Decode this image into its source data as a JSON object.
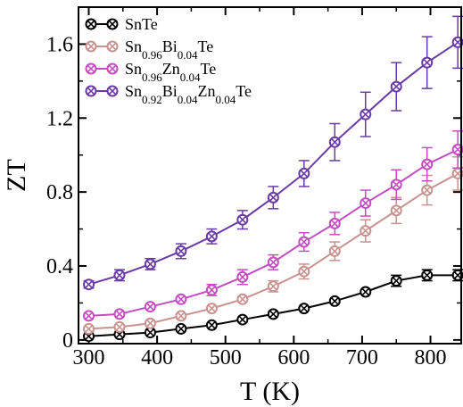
{
  "chart_data": {
    "type": "line",
    "xlabel": "T (K)",
    "ylabel": "ZT",
    "xlim": [
      285,
      845
    ],
    "ylim": [
      -0.02,
      1.8
    ],
    "x_ticks": [
      300,
      400,
      500,
      600,
      700,
      800
    ],
    "y_ticks": [
      0,
      0.4,
      0.8,
      1.2,
      1.6
    ],
    "x_tick_labels": [
      "300",
      "400",
      "500",
      "600",
      "700",
      "800"
    ],
    "y_tick_labels": [
      "0",
      "0.4",
      "0.8",
      "1.2",
      "1.6"
    ],
    "legend_position": "top-left",
    "marker": "circle-x",
    "x": [
      300,
      345,
      390,
      435,
      480,
      525,
      570,
      615,
      660,
      705,
      750,
      795,
      840
    ],
    "series": [
      {
        "name": "SnTe",
        "label_parts": [
          [
            "Sn",
            ""
          ],
          [
            "Te",
            ""
          ]
        ],
        "color": "#000000",
        "values": [
          0.02,
          0.03,
          0.04,
          0.06,
          0.08,
          0.11,
          0.14,
          0.17,
          0.21,
          0.26,
          0.32,
          0.35,
          0.35
        ],
        "errors": [
          0.0,
          0.0,
          0.0,
          0.0,
          0.0,
          0.0,
          0.0,
          0.0,
          0.0,
          0.0,
          0.03,
          0.03,
          0.03
        ]
      },
      {
        "name": "Sn0.96Bi0.04Te",
        "label_parts": [
          [
            "Sn",
            "0.96"
          ],
          [
            "Bi",
            "0.04"
          ],
          [
            "Te",
            ""
          ]
        ],
        "color": "#c8938f",
        "values": [
          0.06,
          0.07,
          0.09,
          0.13,
          0.17,
          0.22,
          0.29,
          0.37,
          0.48,
          0.59,
          0.7,
          0.81,
          0.9
        ],
        "errors": [
          0.0,
          0.0,
          0.0,
          0.0,
          0.0,
          0.0,
          0.03,
          0.04,
          0.05,
          0.06,
          0.07,
          0.08,
          0.09
        ]
      },
      {
        "name": "Sn0.96Zn0.04Te",
        "label_parts": [
          [
            "Sn",
            "0.96"
          ],
          [
            "Zn",
            "0.04"
          ],
          [
            "Te",
            ""
          ]
        ],
        "color": "#c54cc1",
        "values": [
          0.13,
          0.14,
          0.18,
          0.22,
          0.27,
          0.34,
          0.42,
          0.53,
          0.63,
          0.74,
          0.84,
          0.95,
          1.03
        ],
        "errors": [
          0.0,
          0.0,
          0.0,
          0.0,
          0.03,
          0.04,
          0.04,
          0.05,
          0.06,
          0.07,
          0.08,
          0.09,
          0.1
        ]
      },
      {
        "name": "Sn0.92Bi0.04Zn0.04Te",
        "label_parts": [
          [
            "Sn",
            "0.92"
          ],
          [
            "Bi",
            "0.04"
          ],
          [
            "Zn",
            "0.04"
          ],
          [
            "Te",
            ""
          ]
        ],
        "color": "#6a3ba6",
        "values": [
          0.3,
          0.35,
          0.41,
          0.48,
          0.56,
          0.65,
          0.77,
          0.9,
          1.07,
          1.22,
          1.37,
          1.5,
          1.61
        ],
        "errors": [
          0.02,
          0.03,
          0.03,
          0.04,
          0.04,
          0.05,
          0.06,
          0.07,
          0.1,
          0.12,
          0.13,
          0.14,
          0.14
        ]
      }
    ]
  }
}
